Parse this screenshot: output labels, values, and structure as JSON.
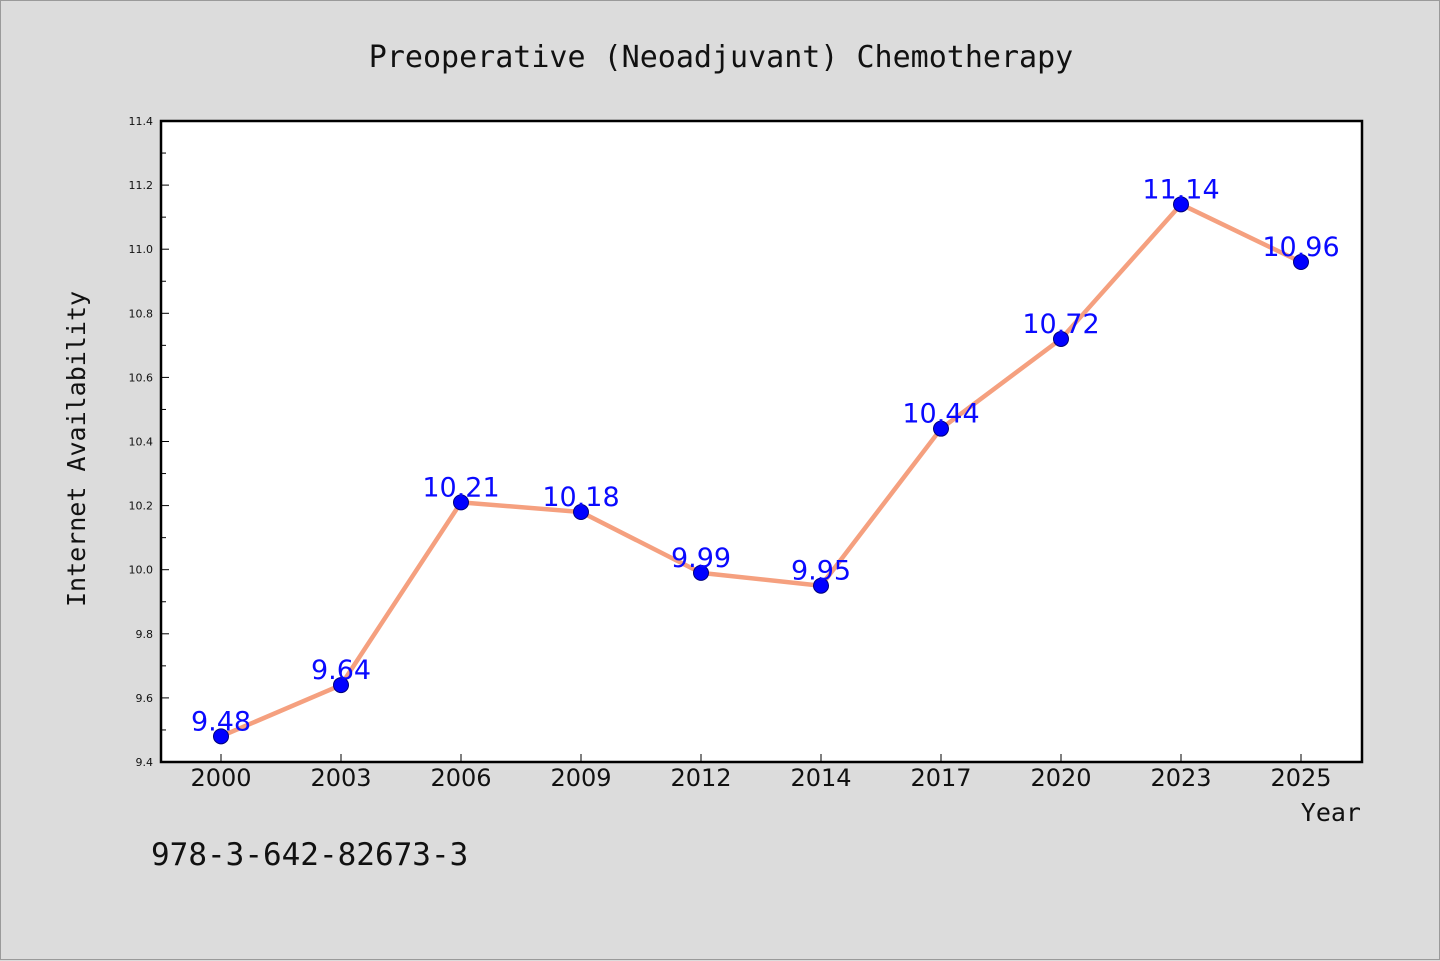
{
  "chart_data": {
    "type": "line",
    "title": "Preoperative (Neoadjuvant) Chemotherapy",
    "xlabel": "Year",
    "ylabel": "Internet Availability",
    "categories": [
      "2000",
      "2003",
      "2006",
      "2009",
      "2012",
      "2014",
      "2017",
      "2020",
      "2023",
      "2025"
    ],
    "series": [
      {
        "values": [
          9.48,
          9.64,
          10.21,
          10.18,
          9.99,
          9.95,
          10.44,
          10.72,
          11.14,
          10.96
        ],
        "labels": [
          "9.48",
          "9.64",
          "10.21",
          "10.18",
          "9.99",
          "9.95",
          "10.44",
          "10.72",
          "11.14",
          "10.96"
        ],
        "line_color": "#f5a07f",
        "marker_color": "#0000ff"
      }
    ],
    "ylim": [
      9.4,
      11.4
    ],
    "yticks": [
      "9.4",
      "9.6",
      "9.8",
      "10.0",
      "10.2",
      "10.4",
      "10.6",
      "10.8",
      "11.0",
      "11.2",
      "11.4"
    ],
    "grid": false,
    "legend": "none"
  },
  "footer": {
    "isbn": "978-3-642-82673-3"
  },
  "colors": {
    "background": "#dcdcdc",
    "plot_background": "#ffffff",
    "label_color": "#0a0aff"
  }
}
